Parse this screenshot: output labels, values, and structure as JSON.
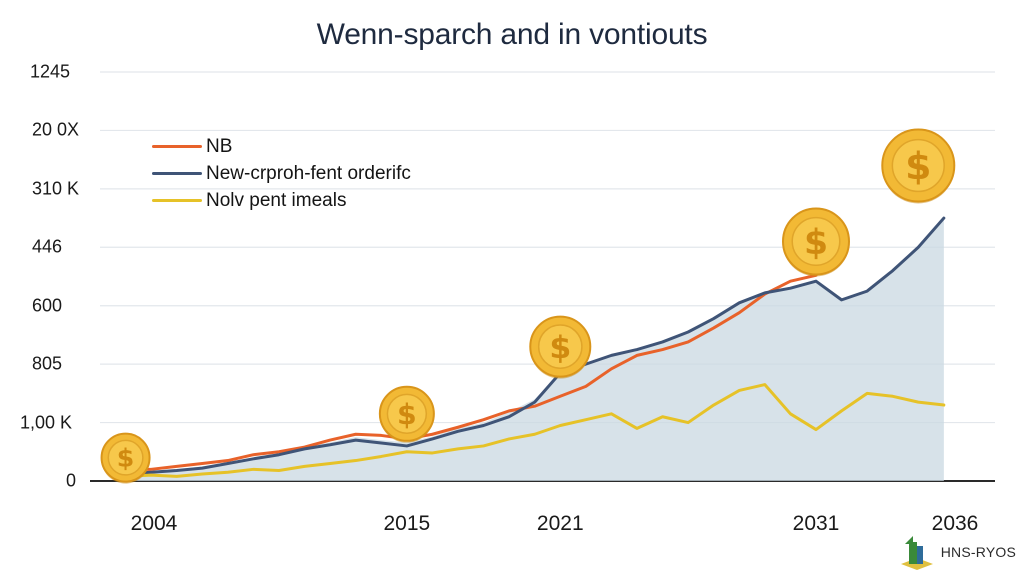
{
  "chart_data": {
    "type": "area",
    "title": "Wenn-sparch and in vontiouts",
    "y_tick_labels": [
      "1245",
      "20 0X",
      "310 K",
      "446",
      "600",
      "805",
      "1,00 K",
      "0"
    ],
    "x_tick_labels": [
      "2004",
      "2015",
      "2021",
      "2031",
      "2036"
    ],
    "x_tick_values": [
      2004,
      2015,
      2021,
      2031,
      2036
    ],
    "legend_position": "top-left",
    "grid": true,
    "series": [
      {
        "name": "NB",
        "color": "#e8622a",
        "x": [
          2004,
          2005,
          2006,
          2007,
          2008,
          2009,
          2010,
          2011,
          2012,
          2013,
          2014,
          2015,
          2016,
          2017,
          2018,
          2019,
          2020,
          2021,
          2022,
          2023,
          2024,
          2025,
          2026,
          2027,
          2028,
          2029,
          2030,
          2031
        ],
        "y": [
          0.2,
          0.2,
          0.25,
          0.3,
          0.35,
          0.45,
          0.5,
          0.58,
          0.7,
          0.8,
          0.78,
          0.72,
          0.8,
          0.92,
          1.05,
          1.2,
          1.28,
          1.45,
          1.62,
          1.92,
          2.15,
          2.25,
          2.38,
          2.62,
          2.88,
          3.2,
          3.42,
          3.52
        ]
      },
      {
        "name": "New-crproh-fent orderifc",
        "color": "#3f5477",
        "x": [
          2004,
          2005,
          2006,
          2007,
          2008,
          2009,
          2010,
          2011,
          2012,
          2013,
          2014,
          2015,
          2016,
          2017,
          2018,
          2019,
          2020,
          2021,
          2022,
          2023,
          2024,
          2025,
          2026,
          2027,
          2028,
          2029,
          2030,
          2031,
          2032,
          2033,
          2034,
          2035,
          2036
        ],
        "y": [
          0.12,
          0.15,
          0.18,
          0.22,
          0.3,
          0.38,
          0.45,
          0.55,
          0.62,
          0.7,
          0.65,
          0.6,
          0.72,
          0.85,
          0.95,
          1.1,
          1.35,
          1.85,
          2.0,
          2.15,
          2.25,
          2.38,
          2.55,
          2.78,
          3.05,
          3.22,
          3.3,
          3.42,
          3.1,
          3.25,
          3.6,
          4.0,
          4.5
        ]
      },
      {
        "name": "Nolv pent imeals",
        "color": "#e6c228",
        "x": [
          2004,
          2005,
          2006,
          2007,
          2008,
          2009,
          2010,
          2011,
          2012,
          2013,
          2014,
          2015,
          2016,
          2017,
          2018,
          2019,
          2020,
          2021,
          2022,
          2023,
          2024,
          2025,
          2026,
          2027,
          2028,
          2029,
          2030,
          2031,
          2032,
          2033,
          2034,
          2035,
          2036
        ],
        "y": [
          0.08,
          0.1,
          0.08,
          0.12,
          0.15,
          0.2,
          0.18,
          0.25,
          0.3,
          0.35,
          0.42,
          0.5,
          0.48,
          0.55,
          0.6,
          0.72,
          0.8,
          0.95,
          1.05,
          1.15,
          0.9,
          1.1,
          1.0,
          1.3,
          1.55,
          1.65,
          1.15,
          0.88,
          1.2,
          1.5,
          1.45,
          1.35,
          1.3
        ]
      }
    ],
    "area_fill": {
      "color": "#c9d8e2",
      "x": [
        2004,
        2005,
        2006,
        2007,
        2008,
        2009,
        2010,
        2011,
        2012,
        2013,
        2014,
        2015,
        2016,
        2017,
        2018,
        2019,
        2020,
        2021,
        2022,
        2023,
        2024,
        2025,
        2026,
        2027,
        2028,
        2029,
        2030,
        2031,
        2032,
        2033,
        2034,
        2035,
        2036
      ],
      "y": [
        0.12,
        0.15,
        0.2,
        0.25,
        0.32,
        0.4,
        0.48,
        0.58,
        0.66,
        0.75,
        0.7,
        0.66,
        0.76,
        0.9,
        1.0,
        1.18,
        1.4,
        1.85,
        2.0,
        2.15,
        2.25,
        2.38,
        2.55,
        2.78,
        3.05,
        3.22,
        3.3,
        3.42,
        3.1,
        3.25,
        3.6,
        4.0,
        4.5
      ]
    },
    "coin_markers": [
      {
        "x": 2004,
        "y": 0.4
      },
      {
        "x": 2015,
        "y": 1.15
      },
      {
        "x": 2021,
        "y": 2.3
      },
      {
        "x": 2031,
        "y": 4.1
      },
      {
        "x": 2035,
        "y": 5.4
      }
    ],
    "coin_symbol": "$"
  },
  "brand": {
    "text": "HNS-RYOS",
    "icon": "building-logo-icon"
  }
}
